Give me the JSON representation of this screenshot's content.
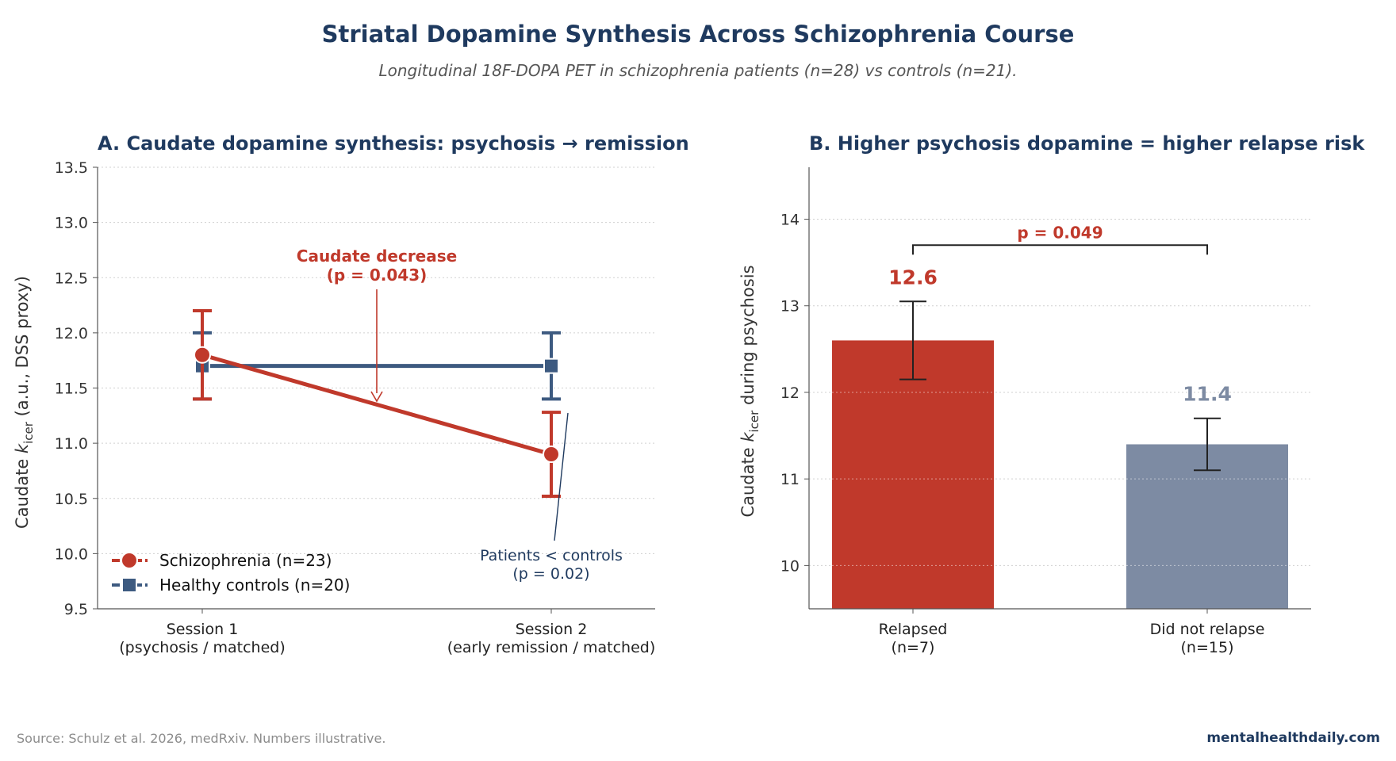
{
  "header": {
    "title": "Striatal Dopamine Synthesis Across Schizophrenia Course",
    "subtitle": "Longitudinal 18F-DOPA PET in schizophrenia patients (n=28) vs controls (n=21)."
  },
  "footer": {
    "source": "Source: Schulz et al. 2026, medRxiv. Numbers illustrative.",
    "brand": "mentalhealthdaily.com"
  },
  "colors": {
    "schizophrenia": "#c0392b",
    "controls": "#3d5a80",
    "not_relapsed": "#7d8ba3",
    "title": "#1f3a5f"
  },
  "chart_data": [
    {
      "type": "line",
      "title": "A. Caudate dopamine synthesis: psychosis → remission",
      "ylabel_prefix": "Caudate ",
      "ylabel_k": "k",
      "ylabel_sub": "icer",
      "ylabel_suffix": " (a.u., DSS proxy)",
      "categories": [
        [
          "Session 1",
          "(psychosis / matched)"
        ],
        [
          "Session 2",
          "(early remission / matched)"
        ]
      ],
      "ylim": [
        9.5,
        13.5
      ],
      "yticks": [
        "9.5",
        "10.0",
        "10.5",
        "11.0",
        "11.5",
        "12.0",
        "12.5",
        "13.0",
        "13.5"
      ],
      "grid": "horizontal dotted",
      "legend_position": "lower-left",
      "series": [
        {
          "name": "Schizophrenia (n=23)",
          "values": [
            11.8,
            10.9
          ],
          "errors": [
            0.4,
            0.38
          ],
          "marker": "circle",
          "color": "#c0392b"
        },
        {
          "name": "Healthy controls (n=20)",
          "values": [
            11.7,
            11.7
          ],
          "errors": [
            0.3,
            0.3
          ],
          "marker": "square",
          "color": "#3d5a80"
        }
      ],
      "annotations": [
        {
          "lines": [
            "Caudate decrease",
            "(p = 0.043)"
          ],
          "color": "#c0392b"
        },
        {
          "lines": [
            "Patients < controls",
            "(p = 0.02)"
          ],
          "color": "#1f3a5f"
        }
      ]
    },
    {
      "type": "bar",
      "title": "B. Higher psychosis dopamine = higher relapse risk",
      "ylabel_prefix": "Caudate ",
      "ylabel_k": "k",
      "ylabel_sub": "icer",
      "ylabel_suffix": " during psychosis",
      "categories": [
        [
          "Relapsed",
          "(n=7)"
        ],
        [
          "Did not relapse",
          "(n=15)"
        ]
      ],
      "values": [
        12.6,
        11.4
      ],
      "value_labels": [
        "12.6",
        "11.4"
      ],
      "errors": [
        0.45,
        0.3
      ],
      "colors": [
        "#c0392b",
        "#7d8ba3"
      ],
      "ylim": [
        9.5,
        14.6
      ],
      "yticks": [
        "10",
        "11",
        "12",
        "13",
        "14"
      ],
      "grid": "horizontal dotted",
      "significance": {
        "label": "p = 0.049",
        "y": 13.7
      }
    }
  ]
}
